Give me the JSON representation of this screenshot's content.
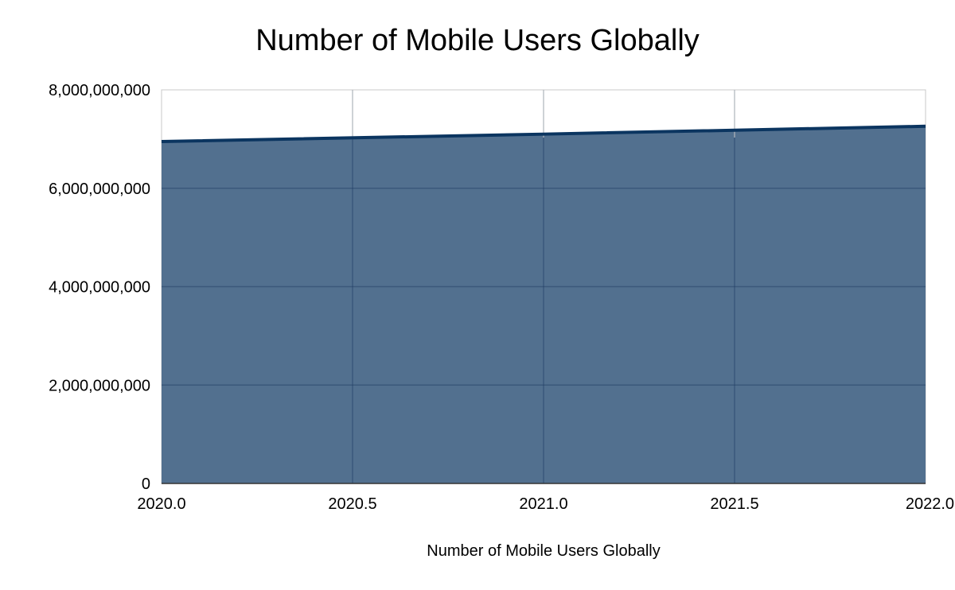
{
  "chart_data": {
    "type": "area",
    "title": "Number of Mobile Users Globally",
    "xlabel": "Number of Mobile Users Globally",
    "ylabel": "",
    "x": [
      2020.0,
      2021.0,
      2022.0
    ],
    "series": [
      {
        "values": [
          6950000000,
          7100000000,
          7260000000
        ],
        "fill_color": "#52708f",
        "line_color": "#0b3560"
      }
    ],
    "xlim": [
      2020.0,
      2022.0
    ],
    "ylim": [
      0,
      8000000000
    ],
    "x_ticks": [
      "2020.0",
      "2020.5",
      "2021.0",
      "2021.5",
      "2022.0"
    ],
    "y_ticks": [
      "0",
      "2,000,000,000",
      "4,000,000,000",
      "6,000,000,000",
      "8,000,000,000"
    ],
    "grid": true,
    "legend": "none"
  }
}
